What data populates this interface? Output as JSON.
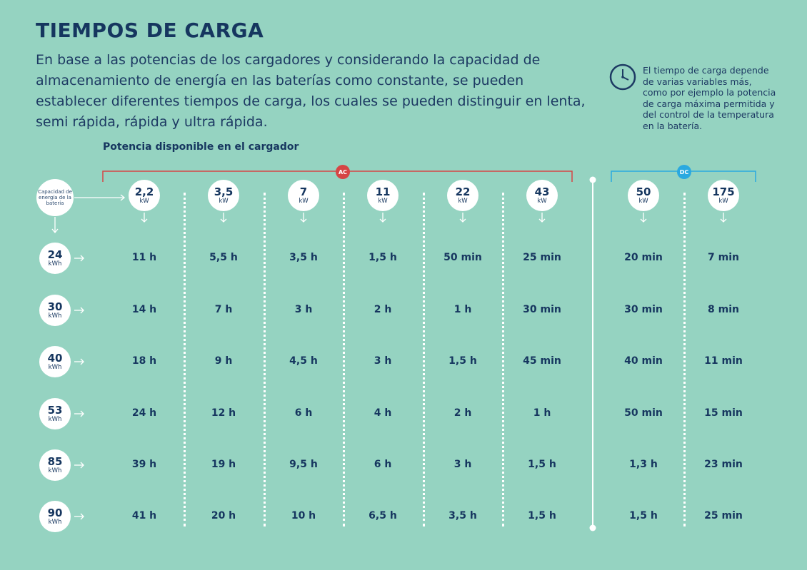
{
  "title": "TIEMPOS DE CARGA",
  "intro": "En base a las potencias de los cargadores y considerando  la capacidad de almacenamiento de energía  en las baterías como constante, se pueden establecer diferentes tiempos de carga, los cuales se pueden distinguir en lenta, semi rápida, rápida y ultra rápida.",
  "note": "El tiempo de carga depende de varias variables más, como por ejemplo la potencia de carga máxima permitida y del control de  la temperatura en la batería.",
  "potencia_label": "Potencia disponible en el cargador",
  "capacidad_label": "Capacidad de energía de la batería",
  "ac_label": "AC",
  "dc_label": "DC",
  "colors": {
    "background": "#95d3c1",
    "text": "#16365f",
    "ac": "#d64545",
    "dc": "#2aa9e0"
  },
  "icons": {
    "note": "clock-icon"
  },
  "chargers": [
    {
      "value": "2,2",
      "unit": "kW",
      "group": "AC"
    },
    {
      "value": "3,5",
      "unit": "kW",
      "group": "AC"
    },
    {
      "value": "7",
      "unit": "kW",
      "group": "AC"
    },
    {
      "value": "11",
      "unit": "kW",
      "group": "AC"
    },
    {
      "value": "22",
      "unit": "kW",
      "group": "AC"
    },
    {
      "value": "43",
      "unit": "kW",
      "group": "AC"
    },
    {
      "value": "50",
      "unit": "kW",
      "group": "DC"
    },
    {
      "value": "175",
      "unit": "kW",
      "group": "DC"
    }
  ],
  "batteries": [
    {
      "value": "24",
      "unit": "kWh"
    },
    {
      "value": "30",
      "unit": "kWh"
    },
    {
      "value": "40",
      "unit": "kWh"
    },
    {
      "value": "53",
      "unit": "kWh"
    },
    {
      "value": "85",
      "unit": "kWh"
    },
    {
      "value": "90",
      "unit": "kWh"
    }
  ],
  "times": [
    [
      "11 h",
      "5,5 h",
      "3,5 h",
      "1,5 h",
      "50 min",
      "25 min",
      "20 min",
      "7 min"
    ],
    [
      "14 h",
      "7 h",
      "3 h",
      "2 h",
      "1 h",
      "30 min",
      "30 min",
      "8 min"
    ],
    [
      "18 h",
      "9 h",
      "4,5 h",
      "3 h",
      "1,5 h",
      "45 min",
      "40 min",
      "11 min"
    ],
    [
      "24 h",
      "12 h",
      "6 h",
      "4 h",
      "2 h",
      "1 h",
      "50 min",
      "15 min"
    ],
    [
      "39 h",
      "19 h",
      "9,5 h",
      "6 h",
      "3 h",
      "1,5 h",
      "1,3 h",
      "23 min"
    ],
    [
      "41 h",
      "20 h",
      "10 h",
      "6,5 h",
      "3,5 h",
      "1,5 h",
      "1,5 h",
      "25 min"
    ]
  ]
}
